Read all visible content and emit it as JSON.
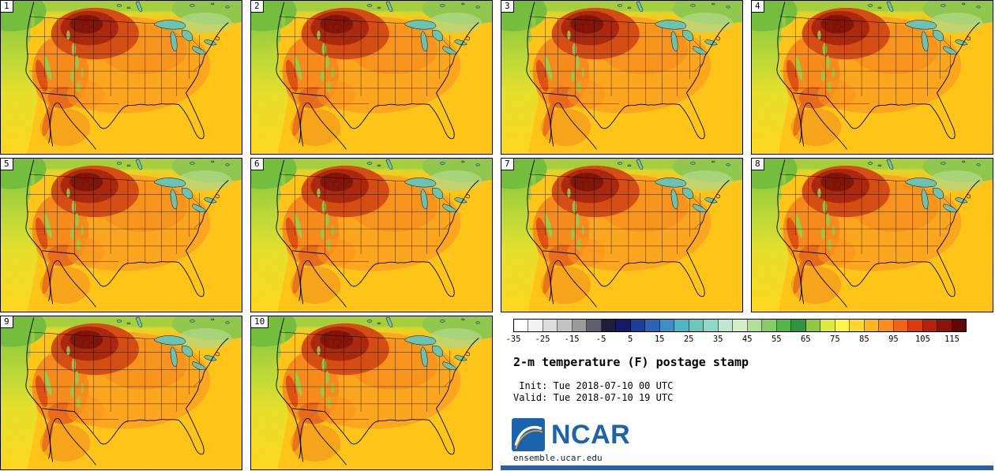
{
  "page": {
    "background": "#ffffff"
  },
  "panels": {
    "labels": [
      "1",
      "2",
      "3",
      "4",
      "5",
      "6",
      "7",
      "8",
      "9",
      "10"
    ]
  },
  "colorbar": {
    "min": -35,
    "max": 120,
    "step": 5,
    "tick_labels": [
      "-35",
      "-25",
      "-15",
      "-5",
      "5",
      "15",
      "25",
      "35",
      "45",
      "55",
      "65",
      "75",
      "85",
      "95",
      "105",
      "115"
    ],
    "segment_colors": [
      "#ffffff",
      "#f2f2f2",
      "#dcdcdc",
      "#c2c2c2",
      "#9a9a9a",
      "#5f5f6b",
      "#1e1e3c",
      "#141a66",
      "#1d3d9b",
      "#2b63b6",
      "#3f8fc4",
      "#4fb5c2",
      "#68c8ba",
      "#92d8c6",
      "#bfe7d2",
      "#d5eec4",
      "#b0df96",
      "#84cc64",
      "#55b44b",
      "#2f953c",
      "#8fca3c",
      "#dcea3e",
      "#fdf44b",
      "#ffd62b",
      "#ffb31c",
      "#fb8e1a",
      "#f26415",
      "#dd3a11",
      "#b81f0c",
      "#8f120a",
      "#5f0806"
    ]
  },
  "info": {
    "title": "2-m temperature (F) postage stamp",
    "init_label": " Init: Tue 2018-07-10 00 UTC",
    "valid_label": "Valid: Tue 2018-07-10 19 UTC",
    "logo_text": "NCAR",
    "logo_color": "#1b64ad",
    "site_url": "ensemble.ucar.edu",
    "footer_bar_color": "#2a5fa8"
  },
  "map_colors": {
    "base": "#ffc616",
    "warm": "#fba01e",
    "hot": "#d44912",
    "hotter": "#a8220c",
    "hottest": "#7c0e07",
    "cool_green": "#74c23d",
    "lake": "#6cc3b4"
  }
}
